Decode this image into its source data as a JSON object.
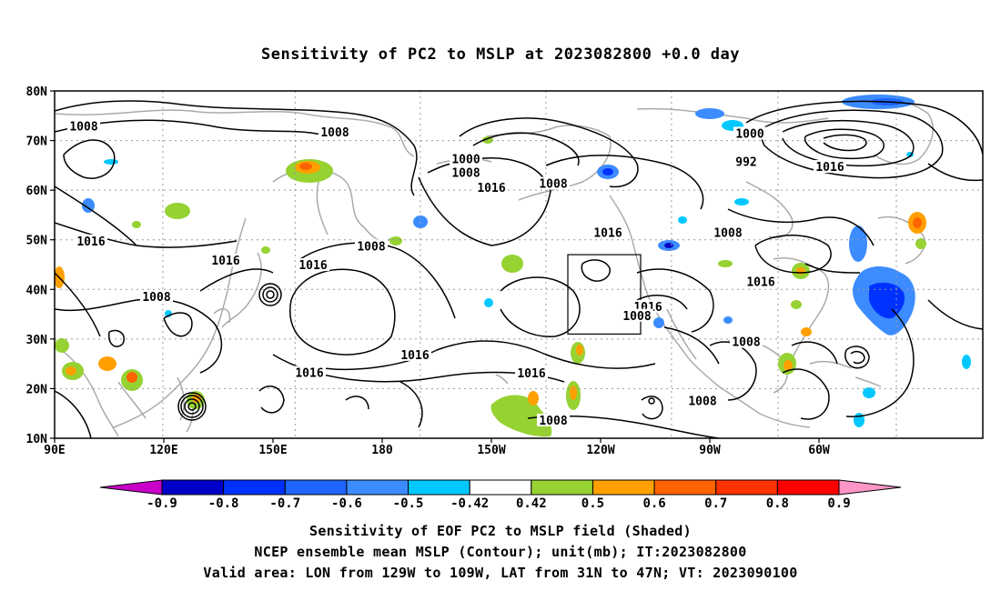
{
  "title": "Sensitivity of PC2 to MSLP at 2023082800 +0.0 day",
  "map": {
    "lat_labels": [
      "80N",
      "70N",
      "60N",
      "50N",
      "40N",
      "30N",
      "20N",
      "10N"
    ],
    "lon_labels": [
      "90E",
      "120E",
      "150E",
      "180",
      "150W",
      "120W",
      "90W",
      "60W"
    ],
    "contour_labels": [
      {
        "text": "1008",
        "lon": 98,
        "lat": 72.8
      },
      {
        "text": "1008",
        "lon": 167,
        "lat": 71.6
      },
      {
        "text": "1000",
        "lon": 203,
        "lat": 66.2
      },
      {
        "text": "1008",
        "lon": 203,
        "lat": 63.4
      },
      {
        "text": "1016",
        "lon": 210,
        "lat": 60.4
      },
      {
        "text": "1008",
        "lon": 227,
        "lat": 61.2
      },
      {
        "text": "1000",
        "lon": 281,
        "lat": 71.3
      },
      {
        "text": "992",
        "lon": 280,
        "lat": 65.6
      },
      {
        "text": "1016",
        "lon": 303,
        "lat": 64.6
      },
      {
        "text": "1016",
        "lon": 100,
        "lat": 49.6
      },
      {
        "text": "1016",
        "lon": 137,
        "lat": 45.7
      },
      {
        "text": "1008",
        "lon": 177,
        "lat": 48.6
      },
      {
        "text": "1016",
        "lon": 161,
        "lat": 44.8
      },
      {
        "text": "1016",
        "lon": 242,
        "lat": 51.3
      },
      {
        "text": "1008",
        "lon": 275,
        "lat": 51.3
      },
      {
        "text": "1016",
        "lon": 284,
        "lat": 41.4
      },
      {
        "text": "1008",
        "lon": 118,
        "lat": 38.4
      },
      {
        "text": "1016",
        "lon": 253,
        "lat": 36.4
      },
      {
        "text": "1008",
        "lon": 250,
        "lat": 34.6
      },
      {
        "text": "1016",
        "lon": 189,
        "lat": 26.7
      },
      {
        "text": "1016",
        "lon": 221,
        "lat": 23.0
      },
      {
        "text": "1008",
        "lon": 280,
        "lat": 29.3
      },
      {
        "text": "1016",
        "lon": 160,
        "lat": 23.1
      },
      {
        "text": "1008",
        "lon": 268,
        "lat": 17.4
      },
      {
        "text": "1008",
        "lon": 227,
        "lat": 13.5
      }
    ],
    "valid_box": {
      "lon_min": 231,
      "lon_max": 251,
      "lat_min": 31,
      "lat_max": 47
    },
    "colors": {
      "land": "#aaaaaa",
      "contour": "#000000",
      "grid": "#999999"
    }
  },
  "colorbar": {
    "ticks": [
      "-0.9",
      "-0.8",
      "-0.7",
      "-0.6",
      "-0.5",
      "-0.42",
      "0.42",
      "0.5",
      "0.6",
      "0.7",
      "0.8",
      "0.9"
    ],
    "colors": [
      "#c800c8",
      "#0000c8",
      "#0032ff",
      "#1e64ff",
      "#3c8cff",
      "#00c8ff",
      "#ffffff",
      "#96d232",
      "#ffa000",
      "#ff6400",
      "#ff3200",
      "#ff0000",
      "#ff96c8"
    ]
  },
  "captions": [
    "Sensitivity of EOF PC2 to MSLP field (Shaded)",
    "NCEP ensemble mean MSLP (Contour); unit(mb); IT:2023082800",
    "Valid area: LON from 129W to 109W, LAT from 31N to 47N; VT: 2023090100"
  ]
}
